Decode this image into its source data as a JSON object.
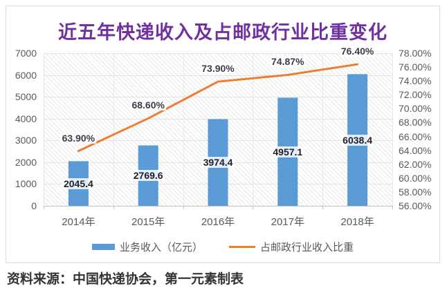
{
  "title": "近五年快递收入及占邮政行业比重变化",
  "source_note": "资料来源：中国快递协会，第一元素制表",
  "colors": {
    "bar": "#5B9BD5",
    "line": "#ED7D31",
    "title": "#7030A0",
    "axis_text": "#595959",
    "gridline": "#e2e2e2",
    "axis_line": "#c0c0c0"
  },
  "chart_data": {
    "type": "bar",
    "subtype": "bar-line-combo",
    "title": "近五年快递收入及占邮政行业比重变化",
    "categories": [
      "2014年",
      "2015年",
      "2016年",
      "2017年",
      "2018年"
    ],
    "series": [
      {
        "name": "业务收入（亿元）",
        "type": "bar",
        "axis": "left",
        "values": [
          2045.4,
          2769.6,
          3974.4,
          4957.1,
          6038.4
        ],
        "labels": [
          "2045.4",
          "2769.6",
          "3974.4",
          "4957.1",
          "6038.4"
        ]
      },
      {
        "name": "占邮政行业收入比重",
        "type": "line",
        "axis": "right",
        "values": [
          63.9,
          68.6,
          73.9,
          74.87,
          76.4
        ],
        "labels": [
          "63.90%",
          "68.60%",
          "73.90%",
          "74.87%",
          "76.40%"
        ]
      }
    ],
    "left_axis": {
      "min": 0,
      "max": 7000,
      "step": 1000,
      "ticks": [
        "7000",
        "6000",
        "5000",
        "4000",
        "3000",
        "2000",
        "1000",
        "0"
      ]
    },
    "right_axis": {
      "min": 56,
      "max": 78,
      "step": 2,
      "ticks": [
        "78.00%",
        "76.00%",
        "74.00%",
        "72.00%",
        "70.00%",
        "68.00%",
        "66.00%",
        "64.00%",
        "62.00%",
        "60.00%",
        "58.00%",
        "56.00%"
      ]
    },
    "legend": [
      "业务收入（亿元）",
      "占邮政行业收入比重"
    ],
    "legend_position": "bottom",
    "grid": true,
    "plot_background": "diagonal-hatch"
  }
}
